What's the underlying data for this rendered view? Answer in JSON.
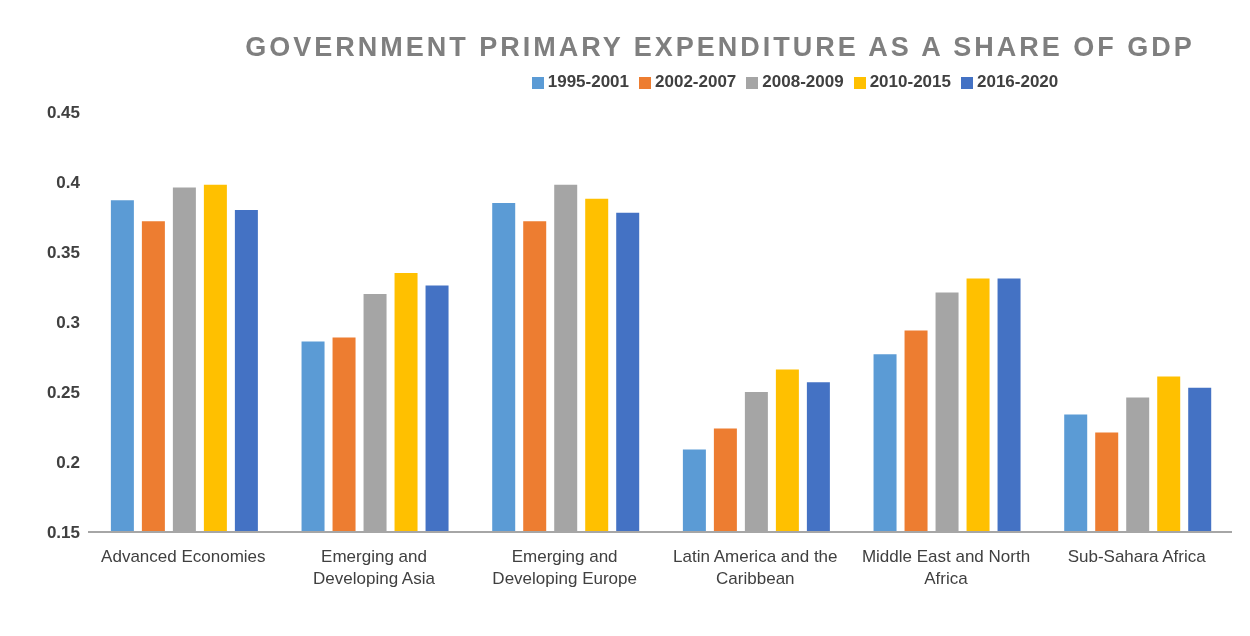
{
  "chart_data": {
    "type": "bar",
    "title": "GOVERNMENT PRIMARY EXPENDITURE AS A SHARE OF GDP",
    "categories": [
      "Advanced Economies",
      "Emerging and Developing Asia",
      "Emerging and Developing Europe",
      "Latin America and the Caribbean",
      "Middle East and North Africa",
      "Sub-Sahara Africa"
    ],
    "series": [
      {
        "name": "1995-2001",
        "color": "#5b9bd5",
        "values": [
          0.387,
          0.286,
          0.385,
          0.209,
          0.277,
          0.234
        ]
      },
      {
        "name": "2002-2007",
        "color": "#ed7d31",
        "values": [
          0.372,
          0.289,
          0.372,
          0.224,
          0.294,
          0.221
        ]
      },
      {
        "name": "2008-2009",
        "color": "#a5a5a5",
        "values": [
          0.396,
          0.32,
          0.398,
          0.25,
          0.321,
          0.246
        ]
      },
      {
        "name": "2010-2015",
        "color": "#ffc000",
        "values": [
          0.398,
          0.335,
          0.388,
          0.266,
          0.331,
          0.261
        ]
      },
      {
        "name": "2016-2020",
        "color": "#4472c4",
        "values": [
          0.38,
          0.326,
          0.378,
          0.257,
          0.331,
          0.253
        ]
      }
    ],
    "ylim": [
      0.15,
      0.45
    ],
    "yticks": [
      0.15,
      0.2,
      0.25,
      0.3,
      0.35,
      0.4,
      0.45
    ],
    "grid": false,
    "legend": "top"
  }
}
